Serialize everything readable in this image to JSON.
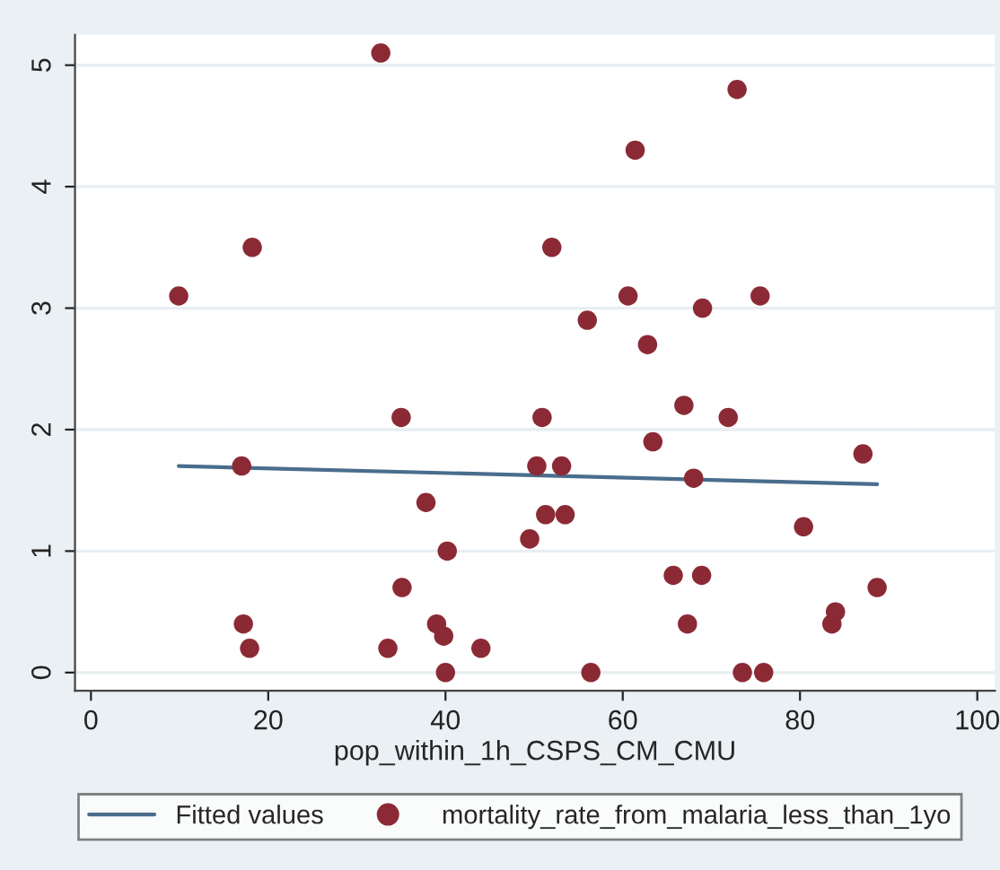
{
  "chart_data": {
    "type": "scatter",
    "xlabel": "pop_within_1h_CSPS_CM_CMU",
    "xlim": [
      -1.8,
      102
    ],
    "ylim": [
      -0.15,
      5.25
    ],
    "xticks": [
      0,
      20,
      40,
      60,
      80,
      100
    ],
    "yticks": [
      0,
      1,
      2,
      3,
      4,
      5
    ],
    "grid": "y",
    "legend": "bottom",
    "series": [
      {
        "name": "Fitted values",
        "type": "line",
        "color": "#4a6d8c",
        "marker": "none",
        "x": [
          9.9,
          88.7
        ],
        "values": [
          1.7,
          1.55
        ]
      },
      {
        "name": "mortality_rate_from_malaria_less_than_1yo",
        "marker": "circle",
        "color": "#8b2a35",
        "x": [
          9.9,
          18.2,
          17,
          17.2,
          17.9,
          32.7,
          35,
          37.8,
          35.1,
          33.5,
          39,
          39.8,
          40,
          40.2,
          44,
          49.5,
          50.3,
          50.9,
          51.3,
          52,
          53.1,
          53.5,
          56,
          56.4,
          60.6,
          61.4,
          62.8,
          63.4,
          65.7,
          66.9,
          67.3,
          68,
          68.9,
          69,
          71.9,
          72.9,
          73.5,
          75.5,
          75.9,
          80.4,
          83.6,
          84,
          87.1,
          88.7
        ],
        "values": [
          3.1,
          3.5,
          1.7,
          0.4,
          0.2,
          5.1,
          2.1,
          1.4,
          0.7,
          0.2,
          0.4,
          0.3,
          0,
          1.0,
          0.2,
          1.1,
          1.7,
          2.1,
          1.3,
          3.5,
          1.7,
          1.3,
          2.9,
          0,
          3.1,
          4.3,
          2.7,
          1.9,
          0.8,
          2.2,
          0.4,
          1.6,
          0.8,
          3.0,
          2.1,
          4.8,
          0,
          3.1,
          0,
          1.2,
          0.4,
          0.5,
          1.8,
          0.7
        ]
      }
    ]
  }
}
